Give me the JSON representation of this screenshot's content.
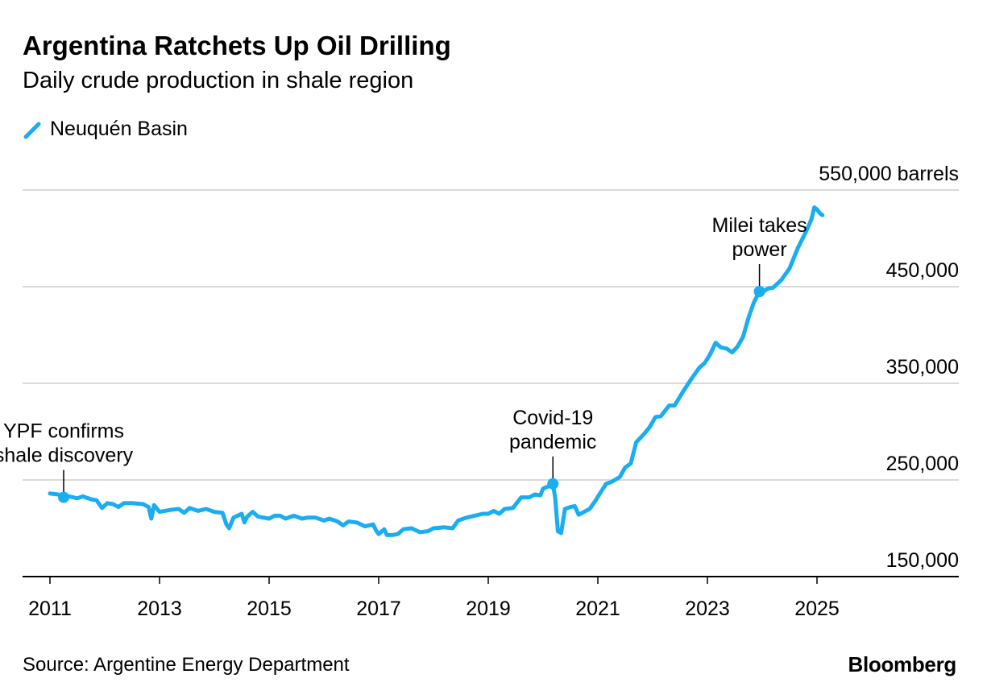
{
  "header": {
    "title": "Argentina Ratchets Up Oil Drilling",
    "subtitle": "Daily crude production in shale region"
  },
  "footer": {
    "source": "Source: Argentine Energy Department",
    "brand": "Bloomberg"
  },
  "colors": {
    "series": "#1aadf0",
    "grid": "#d9d9d9",
    "axis": "#000000"
  },
  "chart_data": {
    "type": "line",
    "title": "Argentina Ratchets Up Oil Drilling",
    "subtitle": "Daily crude production in shale region",
    "xlabel": "",
    "ylabel": "",
    "x_ticks": [
      "2011",
      "2013",
      "2015",
      "2017",
      "2019",
      "2021",
      "2023",
      "2025"
    ],
    "x_range": [
      2011,
      2025.5
    ],
    "y_ticks": [
      150000,
      250000,
      350000,
      450000,
      550000
    ],
    "y_tick_labels": [
      "150,000",
      "250,000",
      "350,000",
      "450,000",
      "550,000 barrels"
    ],
    "ylim": [
      150000,
      550000
    ],
    "grid": "horizontal",
    "legend": "top-left",
    "series": [
      {
        "name": "Neuquén Basin",
        "color": "#1aadf0",
        "points": [
          [
            2011.0,
            236000
          ],
          [
            2011.15,
            235000
          ],
          [
            2011.25,
            232000
          ],
          [
            2011.35,
            233000
          ],
          [
            2011.5,
            231000
          ],
          [
            2011.6,
            233000
          ],
          [
            2011.75,
            230000
          ],
          [
            2011.85,
            229000
          ],
          [
            2011.95,
            221000
          ],
          [
            2012.05,
            226000
          ],
          [
            2012.15,
            225000
          ],
          [
            2012.25,
            222000
          ],
          [
            2012.35,
            226000
          ],
          [
            2012.5,
            226000
          ],
          [
            2012.7,
            225000
          ],
          [
            2012.8,
            222000
          ],
          [
            2012.85,
            210000
          ],
          [
            2012.9,
            224000
          ],
          [
            2013.0,
            217000
          ],
          [
            2013.2,
            219000
          ],
          [
            2013.35,
            220000
          ],
          [
            2013.45,
            216000
          ],
          [
            2013.55,
            221000
          ],
          [
            2013.7,
            218000
          ],
          [
            2013.85,
            220000
          ],
          [
            2014.0,
            217000
          ],
          [
            2014.15,
            216000
          ],
          [
            2014.22,
            204000
          ],
          [
            2014.27,
            200000
          ],
          [
            2014.35,
            211000
          ],
          [
            2014.5,
            215000
          ],
          [
            2014.55,
            206000
          ],
          [
            2014.6,
            212000
          ],
          [
            2014.7,
            217000
          ],
          [
            2014.8,
            212000
          ],
          [
            2014.9,
            211000
          ],
          [
            2015.0,
            210000
          ],
          [
            2015.1,
            213000
          ],
          [
            2015.2,
            213000
          ],
          [
            2015.3,
            210000
          ],
          [
            2015.45,
            213000
          ],
          [
            2015.6,
            210000
          ],
          [
            2015.7,
            211000
          ],
          [
            2015.85,
            211000
          ],
          [
            2016.0,
            208000
          ],
          [
            2016.1,
            210000
          ],
          [
            2016.25,
            207000
          ],
          [
            2016.35,
            203000
          ],
          [
            2016.45,
            207000
          ],
          [
            2016.6,
            206000
          ],
          [
            2016.75,
            202000
          ],
          [
            2016.9,
            204000
          ],
          [
            2016.95,
            198000
          ],
          [
            2017.0,
            194000
          ],
          [
            2017.1,
            199000
          ],
          [
            2017.15,
            193000
          ],
          [
            2017.25,
            193000
          ],
          [
            2017.35,
            194000
          ],
          [
            2017.45,
            199000
          ],
          [
            2017.6,
            200000
          ],
          [
            2017.75,
            196000
          ],
          [
            2017.9,
            197000
          ],
          [
            2018.0,
            200000
          ],
          [
            2018.2,
            201000
          ],
          [
            2018.35,
            200000
          ],
          [
            2018.45,
            208000
          ],
          [
            2018.6,
            211000
          ],
          [
            2018.75,
            213000
          ],
          [
            2018.9,
            215000
          ],
          [
            2019.0,
            215000
          ],
          [
            2019.1,
            218000
          ],
          [
            2019.2,
            215000
          ],
          [
            2019.3,
            220000
          ],
          [
            2019.45,
            221000
          ],
          [
            2019.6,
            232000
          ],
          [
            2019.75,
            232000
          ],
          [
            2019.85,
            235000
          ],
          [
            2019.95,
            234000
          ],
          [
            2020.0,
            241000
          ],
          [
            2020.12,
            244000
          ],
          [
            2020.18,
            246000
          ],
          [
            2020.22,
            232000
          ],
          [
            2020.27,
            197000
          ],
          [
            2020.33,
            195000
          ],
          [
            2020.4,
            220000
          ],
          [
            2020.5,
            222000
          ],
          [
            2020.58,
            223000
          ],
          [
            2020.65,
            214000
          ],
          [
            2020.75,
            217000
          ],
          [
            2020.85,
            220000
          ],
          [
            2020.95,
            228000
          ],
          [
            2021.05,
            237000
          ],
          [
            2021.15,
            246000
          ],
          [
            2021.25,
            248000
          ],
          [
            2021.4,
            253000
          ],
          [
            2021.5,
            263000
          ],
          [
            2021.6,
            267000
          ],
          [
            2021.7,
            289000
          ],
          [
            2021.85,
            298000
          ],
          [
            2021.95,
            305000
          ],
          [
            2022.05,
            315000
          ],
          [
            2022.15,
            316000
          ],
          [
            2022.3,
            327000
          ],
          [
            2022.4,
            327000
          ],
          [
            2022.55,
            341000
          ],
          [
            2022.7,
            354000
          ],
          [
            2022.85,
            366000
          ],
          [
            2022.95,
            371000
          ],
          [
            2023.05,
            380000
          ],
          [
            2023.15,
            392000
          ],
          [
            2023.25,
            387000
          ],
          [
            2023.35,
            386000
          ],
          [
            2023.45,
            382000
          ],
          [
            2023.55,
            388000
          ],
          [
            2023.65,
            398000
          ],
          [
            2023.75,
            418000
          ],
          [
            2023.85,
            434000
          ],
          [
            2023.95,
            445000
          ],
          [
            2024.0,
            444000
          ],
          [
            2024.1,
            448000
          ],
          [
            2024.2,
            449000
          ],
          [
            2024.35,
            457000
          ],
          [
            2024.5,
            469000
          ],
          [
            2024.65,
            490000
          ],
          [
            2024.8,
            507000
          ],
          [
            2024.9,
            520000
          ],
          [
            2024.95,
            532000
          ],
          [
            2025.0,
            530000
          ],
          [
            2025.05,
            526000
          ],
          [
            2025.1,
            524000
          ]
        ]
      }
    ],
    "annotations": [
      {
        "x": 2011.25,
        "y": 232000,
        "lines": [
          "YPF confirms",
          "shale discovery"
        ]
      },
      {
        "x": 2020.18,
        "y": 246000,
        "lines": [
          "Covid-19",
          "pandemic"
        ]
      },
      {
        "x": 2023.95,
        "y": 445000,
        "lines": [
          "Milei takes",
          "power"
        ]
      }
    ]
  }
}
